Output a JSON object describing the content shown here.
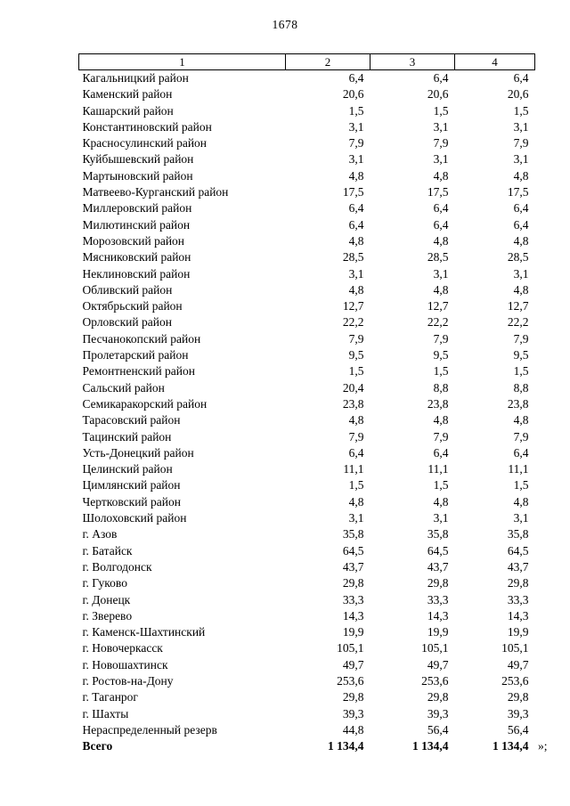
{
  "page": {
    "number": "1678",
    "closing_mark": "»;"
  },
  "table": {
    "headers": [
      "1",
      "2",
      "3",
      "4"
    ],
    "rows": [
      [
        "Кагальницкий район",
        "6,4",
        "6,4",
        "6,4"
      ],
      [
        "Каменский район",
        "20,6",
        "20,6",
        "20,6"
      ],
      [
        "Кашарский район",
        "1,5",
        "1,5",
        "1,5"
      ],
      [
        "Константиновский район",
        "3,1",
        "3,1",
        "3,1"
      ],
      [
        "Красносулинский район",
        "7,9",
        "7,9",
        "7,9"
      ],
      [
        "Куйбышевский район",
        "3,1",
        "3,1",
        "3,1"
      ],
      [
        "Мартыновский район",
        "4,8",
        "4,8",
        "4,8"
      ],
      [
        "Матвеево-Курганский район",
        "17,5",
        "17,5",
        "17,5"
      ],
      [
        "Миллеровский район",
        "6,4",
        "6,4",
        "6,4"
      ],
      [
        "Милютинский район",
        "6,4",
        "6,4",
        "6,4"
      ],
      [
        "Морозовский район",
        "4,8",
        "4,8",
        "4,8"
      ],
      [
        "Мясниковский район",
        "28,5",
        "28,5",
        "28,5"
      ],
      [
        "Неклиновский район",
        "3,1",
        "3,1",
        "3,1"
      ],
      [
        "Обливский район",
        "4,8",
        "4,8",
        "4,8"
      ],
      [
        "Октябрьский район",
        "12,7",
        "12,7",
        "12,7"
      ],
      [
        "Орловский район",
        "22,2",
        "22,2",
        "22,2"
      ],
      [
        "Песчанокопский район",
        "7,9",
        "7,9",
        "7,9"
      ],
      [
        "Пролетарский район",
        "9,5",
        "9,5",
        "9,5"
      ],
      [
        "Ремонтненский район",
        "1,5",
        "1,5",
        "1,5"
      ],
      [
        "Сальский район",
        "20,4",
        "8,8",
        "8,8"
      ],
      [
        "Семикаракорский район",
        "23,8",
        "23,8",
        "23,8"
      ],
      [
        "Тарасовский район",
        "4,8",
        "4,8",
        "4,8"
      ],
      [
        "Тацинский район",
        "7,9",
        "7,9",
        "7,9"
      ],
      [
        "Усть-Донецкий район",
        "6,4",
        "6,4",
        "6,4"
      ],
      [
        "Целинский район",
        "11,1",
        "11,1",
        "11,1"
      ],
      [
        "Цимлянский район",
        "1,5",
        "1,5",
        "1,5"
      ],
      [
        "Чертковский район",
        "4,8",
        "4,8",
        "4,8"
      ],
      [
        "Шолоховский район",
        "3,1",
        "3,1",
        "3,1"
      ],
      [
        "г. Азов",
        "35,8",
        "35,8",
        "35,8"
      ],
      [
        "г. Батайск",
        "64,5",
        "64,5",
        "64,5"
      ],
      [
        "г. Волгодонск",
        "43,7",
        "43,7",
        "43,7"
      ],
      [
        "г. Гуково",
        "29,8",
        "29,8",
        "29,8"
      ],
      [
        "г. Донецк",
        "33,3",
        "33,3",
        "33,3"
      ],
      [
        "г. Зверево",
        "14,3",
        "14,3",
        "14,3"
      ],
      [
        "г. Каменск-Шахтинский",
        "19,9",
        "19,9",
        "19,9"
      ],
      [
        "г. Новочеркасск",
        "105,1",
        "105,1",
        "105,1"
      ],
      [
        "г. Новошахтинск",
        "49,7",
        "49,7",
        "49,7"
      ],
      [
        "г. Ростов-на-Дону",
        "253,6",
        "253,6",
        "253,6"
      ],
      [
        "г. Таганрог",
        "29,8",
        "29,8",
        "29,8"
      ],
      [
        "г. Шахты",
        "39,3",
        "39,3",
        "39,3"
      ],
      [
        "Нераспределенный резерв",
        "44,8",
        "56,4",
        "56,4"
      ]
    ],
    "total_row": [
      "Всего",
      "1 134,4",
      "1 134,4",
      "1 134,4"
    ]
  }
}
